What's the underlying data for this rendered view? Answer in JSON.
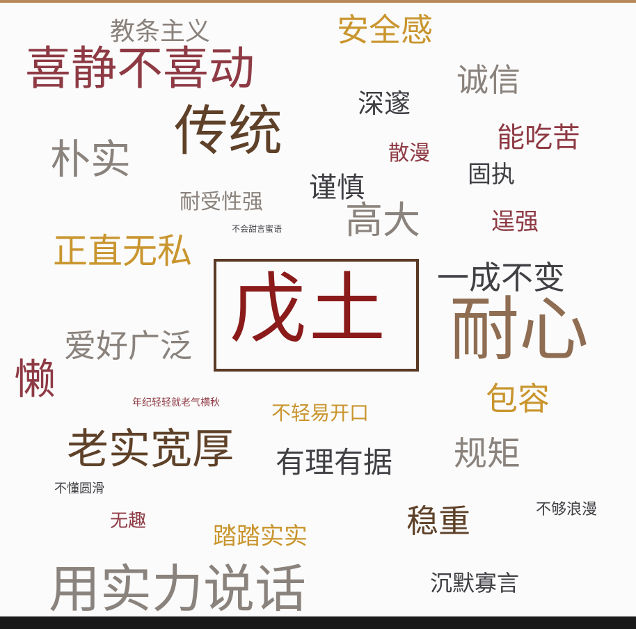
{
  "center": "戊土",
  "words": {
    "w01": "教条主义",
    "w02": "安全感",
    "w03": "喜静不喜动",
    "w04": "诚信",
    "w05": "深邃",
    "w06": "传统",
    "w07": "能吃苦",
    "w08": "朴实",
    "w09": "散漫",
    "w10": "固执",
    "w11": "谨慎",
    "w12": "耐受性强",
    "w13": "高大",
    "w14": "逞强",
    "w15": "不会甜言蜜语",
    "w16": "正直无私",
    "w17": "一成不变",
    "w18": "耐心",
    "w19": "爱好广泛",
    "w20": "懒",
    "w21": "包容",
    "w22": "年纪轻轻就老气横秋",
    "w23": "不轻易开口",
    "w24": "老实宽厚",
    "w25": "有理有据",
    "w26": "规矩",
    "w27": "不懂圆滑",
    "w28": "不够浪漫",
    "w29": "无趣",
    "w30": "踏踏实实",
    "w31": "稳重",
    "w32": "用实力说话",
    "w33": "沉默寡言"
  }
}
